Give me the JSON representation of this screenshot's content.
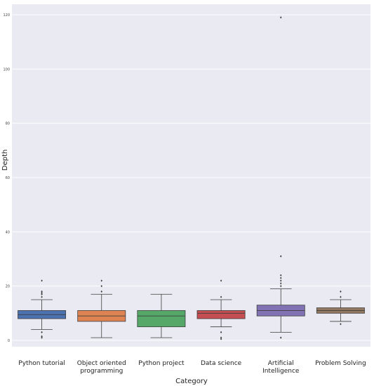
{
  "chart_data": {
    "type": "box",
    "title": "",
    "xlabel": "Category",
    "ylabel": "Depth",
    "ylim": [
      -3,
      122
    ],
    "yticks": [
      0,
      20,
      40,
      60,
      80,
      100,
      120
    ],
    "grid": true,
    "background": "#eaeaf2",
    "categories": [
      {
        "label_lines": [
          "Python tutorial"
        ],
        "color": "#4c72b0",
        "whisker_low": 4,
        "q1": 8,
        "median": 9.5,
        "q3": 11,
        "whisker_high": 15,
        "outliers": [
          1,
          1.5,
          3,
          16,
          17,
          17.5,
          18,
          22
        ]
      },
      {
        "label_lines": [
          "Object oriented",
          "programming"
        ],
        "color": "#dd8452",
        "whisker_low": 1,
        "q1": 7,
        "median": 9,
        "q3": 11,
        "whisker_high": 17,
        "outliers": [
          18,
          20,
          22
        ]
      },
      {
        "label_lines": [
          "Python project"
        ],
        "color": "#55a868",
        "whisker_low": 1,
        "q1": 5,
        "median": 9,
        "q3": 11,
        "whisker_high": 17,
        "outliers": []
      },
      {
        "label_lines": [
          "Data science"
        ],
        "color": "#c44e52",
        "whisker_low": 5,
        "q1": 8,
        "median": 10,
        "q3": 11,
        "whisker_high": 15,
        "outliers": [
          0.5,
          1,
          3,
          16,
          22
        ]
      },
      {
        "label_lines": [
          "Artificial",
          "Intelligence"
        ],
        "color": "#8172b3",
        "whisker_low": 3,
        "q1": 9,
        "median": 11,
        "q3": 13,
        "whisker_high": 19,
        "outliers": [
          1,
          20,
          21,
          22,
          23,
          24,
          31,
          119
        ]
      },
      {
        "label_lines": [
          "Problem Solving"
        ],
        "color": "#937860",
        "whisker_low": 7,
        "q1": 10,
        "median": 11,
        "q3": 12,
        "whisker_high": 15,
        "outliers": [
          6,
          16,
          18
        ]
      }
    ]
  }
}
